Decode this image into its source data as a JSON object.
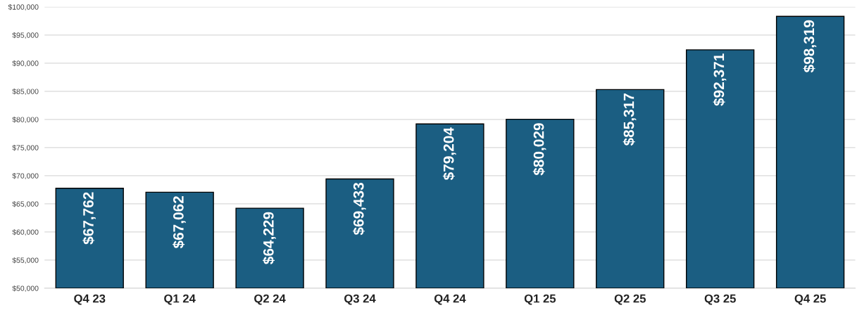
{
  "chart_data": {
    "type": "bar",
    "categories": [
      "Q4 23",
      "Q1 24",
      "Q2 24",
      "Q3 24",
      "Q4 24",
      "Q1 25",
      "Q2 25",
      "Q3 25",
      "Q4 25"
    ],
    "values": [
      67762,
      67062,
      64229,
      69433,
      79204,
      80029,
      85317,
      92371,
      98319
    ],
    "value_labels": [
      "$67,762",
      "$67,062",
      "$64,229",
      "$69,433",
      "$79,204",
      "$80,029",
      "$85,317",
      "$92,371",
      "$98,319"
    ],
    "color": "#1b5e82",
    "ylim": [
      50000,
      100000
    ],
    "yticks": [
      {
        "value": 50000,
        "label": "$50,000"
      },
      {
        "value": 55000,
        "label": "$55,000"
      },
      {
        "value": 60000,
        "label": "$60,000"
      },
      {
        "value": 65000,
        "label": "$65,000"
      },
      {
        "value": 70000,
        "label": "$70,000"
      },
      {
        "value": 75000,
        "label": "$75,000"
      },
      {
        "value": 80000,
        "label": "$80,000"
      },
      {
        "value": 85000,
        "label": "$85,000"
      },
      {
        "value": 90000,
        "label": "$90,000"
      },
      {
        "value": 95000,
        "label": "$95,000"
      },
      {
        "value": 100000,
        "label": "$100,000"
      }
    ],
    "grid": "y"
  }
}
